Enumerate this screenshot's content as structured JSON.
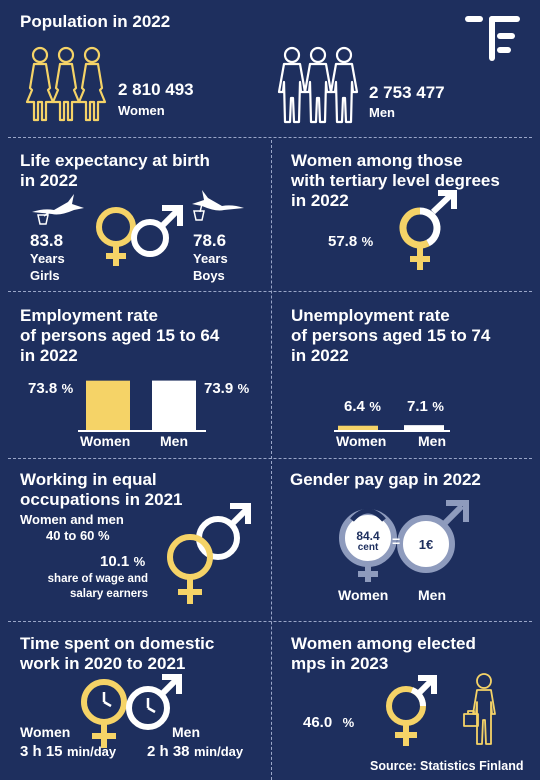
{
  "population": {
    "title": "Population in 2022",
    "women_value": "2 810 493",
    "women_label": "Women",
    "men_value": "2 753 477",
    "men_label": "Men"
  },
  "logo": {
    "icon": "statistics-finland-logo-icon"
  },
  "life_expectancy": {
    "title_line1": "Life expectancy at birth",
    "title_line2": "in 2022",
    "girls_value": "83.8",
    "girls_unit": "Years",
    "girls_label": "Girls",
    "boys_value": "78.6",
    "boys_unit": "Years",
    "boys_label": "Boys"
  },
  "tertiary": {
    "title_line1": "Women among those",
    "title_line2": "with tertiary level degrees",
    "title_line3": "in 2022",
    "value": "57.8",
    "unit": "%",
    "share": 0.578
  },
  "employment": {
    "title_line1": "Employment rate",
    "title_line2": "of persons aged 15 to 64",
    "title_line3": "in 2022",
    "women_value": "73.8",
    "men_value": "73.9",
    "unit": "%",
    "women_label": "Women",
    "men_label": "Men",
    "women": 73.8,
    "men": 73.9
  },
  "unemployment": {
    "title_line1": "Unemployment rate",
    "title_line2": "of persons aged 15 to 74",
    "title_line3": "in 2022",
    "women_value": "6.4",
    "men_value": "7.1",
    "unit": "%",
    "women_label": "Women",
    "men_label": "Men",
    "women": 6.4,
    "men": 7.1
  },
  "equal_occupations": {
    "title_line1": "Working in equal",
    "title_line2": "occupations in 2021",
    "sub_line1": "Women and men",
    "sub_line2": "40 to 60 %",
    "value": "10.1",
    "unit": "%",
    "desc_line1": "share of wage and",
    "desc_line2": "salary earners"
  },
  "pay_gap": {
    "title": "Gender pay gap in 2022",
    "women_value": "84.4",
    "women_unit": "cent",
    "equals": "=",
    "men_value": "1€",
    "women_label": "Women",
    "men_label": "Men"
  },
  "domestic_work": {
    "title_line1": "Time spent on domestic",
    "title_line2": "work in 2020 to 2021",
    "women_label": "Women",
    "men_label": "Men",
    "women_value": "3 h 15",
    "men_value": "2 h 38",
    "unit": "min/day"
  },
  "elected_mps": {
    "title_line1": "Women among elected",
    "title_line2": "mps in 2023",
    "value": "46.0",
    "unit": "%"
  },
  "source": "Source: Statistics Finland",
  "colors": {
    "background": "#1e2f5e",
    "women": "#f5d367",
    "men": "#ffffff",
    "divider": "#9aa6c8"
  }
}
